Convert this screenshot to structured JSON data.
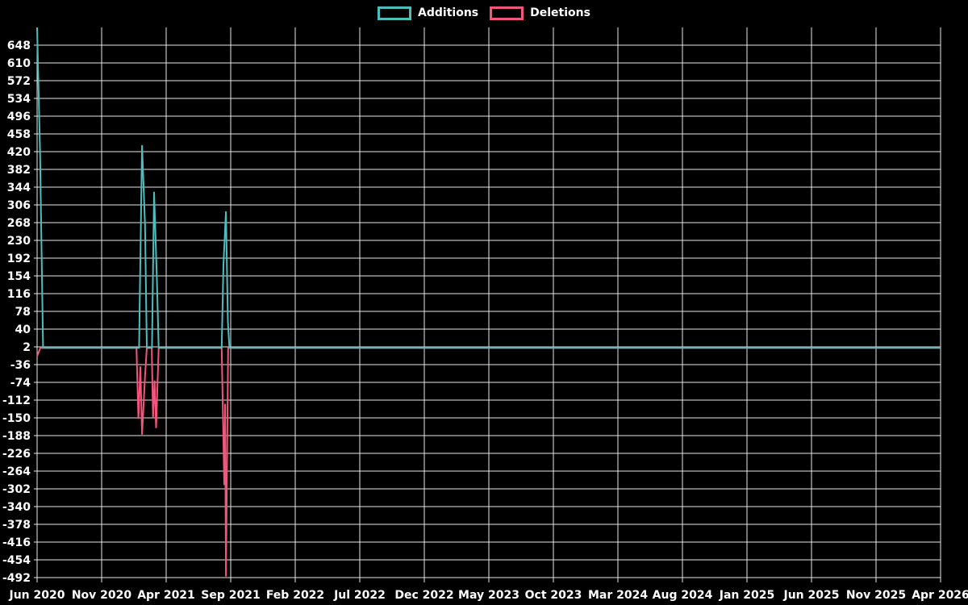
{
  "legend": {
    "additions_label": "Additions",
    "deletions_label": "Deletions"
  },
  "colors": {
    "additions": "#4dbdbd",
    "deletions": "#f2567c",
    "grid": "#e8e8e8",
    "text": "#ffffff",
    "background": "#000000"
  },
  "chart_data": {
    "type": "line",
    "title": "",
    "xlabel": "",
    "ylabel": "",
    "grid": true,
    "legend_position": "top-center",
    "background": "black",
    "x_unit": "months_since_Jun_2020",
    "x_tick_labels": [
      "Jun 2020",
      "Nov 2020",
      "Apr 2021",
      "Sep 2021",
      "Feb 2022",
      "Jul 2022",
      "Dec 2022",
      "May 2023",
      "Oct 2023",
      "Mar 2024",
      "Aug 2024",
      "Jan 2025",
      "Jun 2025",
      "Nov 2025",
      "Apr 2026"
    ],
    "x_tick_months": [
      0,
      5,
      10,
      15,
      20,
      25,
      30,
      35,
      40,
      45,
      50,
      55,
      60,
      65,
      70
    ],
    "y_ticks": [
      648,
      610,
      572,
      534,
      496,
      458,
      420,
      382,
      344,
      306,
      268,
      230,
      192,
      154,
      116,
      78,
      40,
      2,
      -36,
      -74,
      -112,
      -150,
      -188,
      -226,
      -264,
      -302,
      -340,
      -378,
      -416,
      -454,
      -492
    ],
    "ylim": [
      -492,
      686
    ],
    "xlim": [
      0,
      70
    ],
    "series": [
      {
        "name": "Additions",
        "color_key": "additions",
        "points": [
          [
            0,
            686
          ],
          [
            0.23,
            414
          ],
          [
            0.35,
            200
          ],
          [
            0.46,
            0
          ],
          [
            7.9,
            0
          ],
          [
            8.13,
            434
          ],
          [
            8.36,
            262
          ],
          [
            8.5,
            0
          ],
          [
            8.9,
            0
          ],
          [
            9.06,
            334
          ],
          [
            9.29,
            140
          ],
          [
            9.42,
            0
          ],
          [
            14.3,
            0
          ],
          [
            14.44,
            178
          ],
          [
            14.63,
            292
          ],
          [
            14.78,
            56
          ],
          [
            14.9,
            0
          ],
          [
            70,
            0
          ]
        ]
      },
      {
        "name": "Deletions",
        "color_key": "deletions",
        "points": [
          [
            0,
            -18
          ],
          [
            0.25,
            0
          ],
          [
            7.7,
            0
          ],
          [
            7.85,
            -152
          ],
          [
            8.0,
            -40
          ],
          [
            8.13,
            -186
          ],
          [
            8.36,
            -60
          ],
          [
            8.5,
            0
          ],
          [
            8.88,
            0
          ],
          [
            8.98,
            -150
          ],
          [
            9.1,
            -70
          ],
          [
            9.22,
            -172
          ],
          [
            9.42,
            0
          ],
          [
            14.3,
            0
          ],
          [
            14.5,
            -294
          ],
          [
            14.56,
            -120
          ],
          [
            14.63,
            -490
          ],
          [
            14.8,
            0
          ],
          [
            70,
            0
          ]
        ]
      }
    ]
  }
}
